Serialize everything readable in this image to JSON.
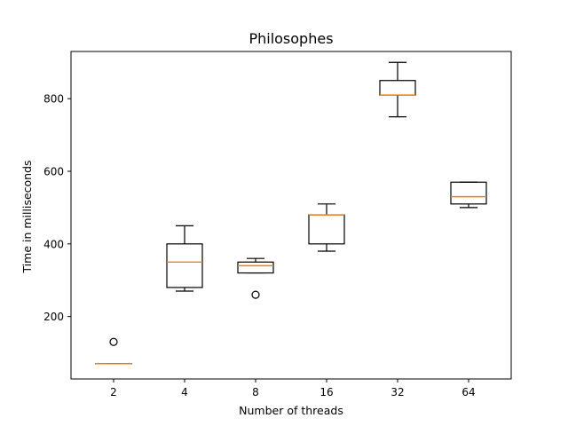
{
  "chart_data": {
    "type": "boxplot",
    "title": "Philosophes",
    "xlabel": "Number of threads",
    "ylabel": "Time in milliseconds",
    "ylim": [
      28,
      930
    ],
    "yticks": [
      200,
      400,
      600,
      800
    ],
    "grid": false,
    "median_color": "#ff7f0e",
    "box_color": "#000000",
    "boxes": [
      {
        "label": "2",
        "whislo": 70,
        "q1": 70,
        "med": 70,
        "q3": 70,
        "whishi": 70,
        "fliers": [
          130
        ]
      },
      {
        "label": "4",
        "whislo": 270,
        "q1": 280,
        "med": 350,
        "q3": 400,
        "whishi": 450,
        "fliers": []
      },
      {
        "label": "8",
        "whislo": 320,
        "q1": 320,
        "med": 340,
        "q3": 350,
        "whishi": 360,
        "fliers": [
          260
        ]
      },
      {
        "label": "16",
        "whislo": 380,
        "q1": 400,
        "med": 480,
        "q3": 480,
        "whishi": 510,
        "fliers": []
      },
      {
        "label": "32",
        "whislo": 750,
        "q1": 810,
        "med": 810,
        "q3": 850,
        "whishi": 900,
        "fliers": []
      },
      {
        "label": "64",
        "whislo": 500,
        "q1": 510,
        "med": 530,
        "q3": 570,
        "whishi": 570,
        "fliers": []
      }
    ]
  }
}
